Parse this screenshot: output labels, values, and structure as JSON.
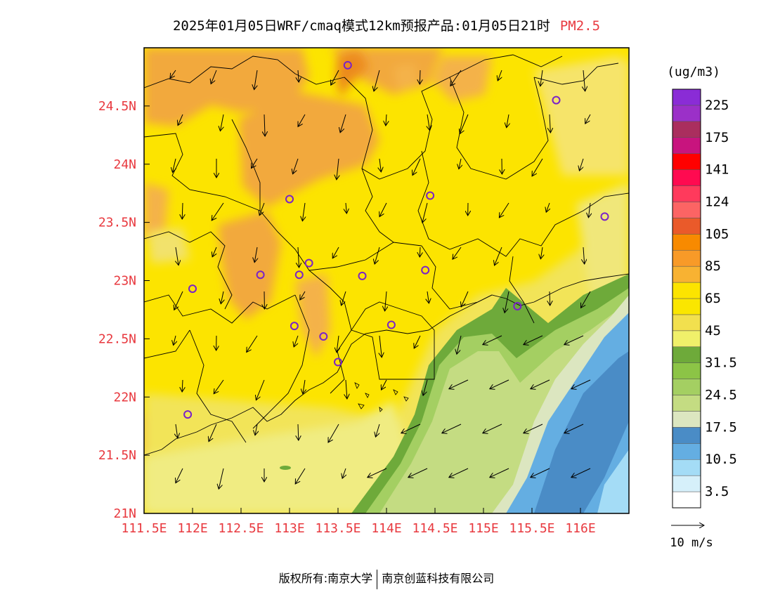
{
  "title": "2025年01月05日WRF/cmaq模式12km预报产品:01月05日21时",
  "variable": "PM2.5",
  "legend": {
    "unit": "(ug/m3)",
    "labels": [
      "3.5",
      "10.5",
      "17.5",
      "24.5",
      "31.5",
      "45",
      "65",
      "85",
      "105",
      "124",
      "141",
      "175",
      "225"
    ],
    "colors": [
      "#ffffff",
      "#d6f0fa",
      "#a4dcf6",
      "#64aee2",
      "#4a8cc6",
      "#dce6c0",
      "#c4dc82",
      "#a4cf62",
      "#8cc446",
      "#6eaa3a",
      "#f0f06a",
      "#f2e04e",
      "#fae600",
      "#fce400",
      "#f8b232",
      "#f89a28",
      "#f88a00",
      "#ea5a2a",
      "#fc6464",
      "#ff3a5c",
      "#ff0a50",
      "#ff0000",
      "#c8147e",
      "#aa2e5e",
      "#9b30c8",
      "#8a2cd6"
    ]
  },
  "wind_legend": {
    "label": "10 m/s"
  },
  "map": {
    "x_ticks": [
      "111.5E",
      "112E",
      "112.5E",
      "113E",
      "113.5E",
      "114E",
      "114.5E",
      "115E",
      "115.5E",
      "116E"
    ],
    "y_ticks": [
      "21N",
      "21.5N",
      "22N",
      "22.5N",
      "23N",
      "23.5N",
      "24N",
      "24.5N"
    ],
    "lon_range": [
      111.5,
      116.5
    ],
    "lat_range": [
      21,
      25
    ],
    "stations": [
      {
        "lon": 113.6,
        "lat": 24.85
      },
      {
        "lon": 115.75,
        "lat": 24.55
      },
      {
        "lon": 113.0,
        "lat": 23.7
      },
      {
        "lon": 114.45,
        "lat": 23.73
      },
      {
        "lon": 116.25,
        "lat": 23.55
      },
      {
        "lon": 113.2,
        "lat": 23.15
      },
      {
        "lon": 113.1,
        "lat": 23.05
      },
      {
        "lon": 112.7,
        "lat": 23.05
      },
      {
        "lon": 113.75,
        "lat": 23.04
      },
      {
        "lon": 114.4,
        "lat": 23.09
      },
      {
        "lon": 112.0,
        "lat": 22.93
      },
      {
        "lon": 115.35,
        "lat": 22.78
      },
      {
        "lon": 113.05,
        "lat": 22.61
      },
      {
        "lon": 114.05,
        "lat": 22.62
      },
      {
        "lon": 113.35,
        "lat": 22.52
      },
      {
        "lon": 113.5,
        "lat": 22.3
      },
      {
        "lon": 111.95,
        "lat": 21.85
      }
    ]
  },
  "footer": {
    "left": "版权所有:南京大学",
    "right": "南京创蓝科技有限公司"
  }
}
